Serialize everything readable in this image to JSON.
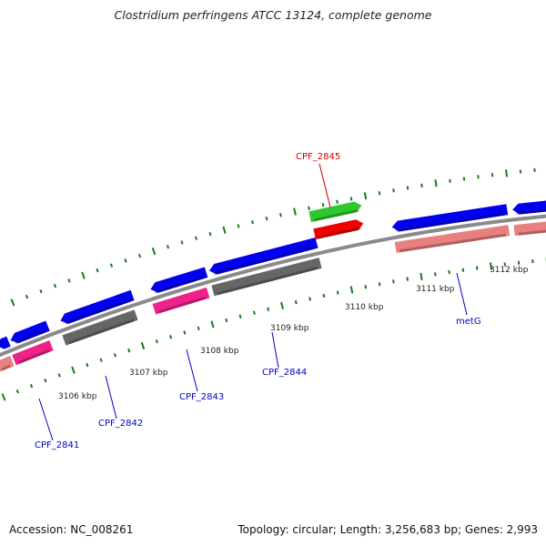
{
  "title": "Clostridium perfringens ATCC 13124, complete genome",
  "footer": {
    "accession": "Accession: NC_008261",
    "stats": "Topology: circular; Length: 3,256,683 bp; Genes: 2,993"
  },
  "colors": {
    "backbone": "#8a8a8a",
    "cds": "#0000ee",
    "cds_forward_highlight": "#2ec82e",
    "rna_highlight": "#ee0000",
    "gene_pink": "#ee2288",
    "gene_salmon": "#e88080",
    "gene_gray": "#666666",
    "tick": "#1a7a1a",
    "label_blue": "#0000cc",
    "label_red": "#cc0000"
  },
  "scale_labels": [
    "3106 kbp",
    "3107 kbp",
    "3108 kbp",
    "3109 kbp",
    "3110 kbp",
    "3111 kbp",
    "3112 kbp"
  ],
  "gene_labels": [
    {
      "text": "CPF_2841",
      "color": "blue"
    },
    {
      "text": "CPF_2842",
      "color": "blue"
    },
    {
      "text": "CPF_2843",
      "color": "blue"
    },
    {
      "text": "CPF_2844",
      "color": "blue"
    },
    {
      "text": "CPF_2845",
      "color": "red"
    },
    {
      "text": "metG",
      "color": "blue"
    }
  ]
}
